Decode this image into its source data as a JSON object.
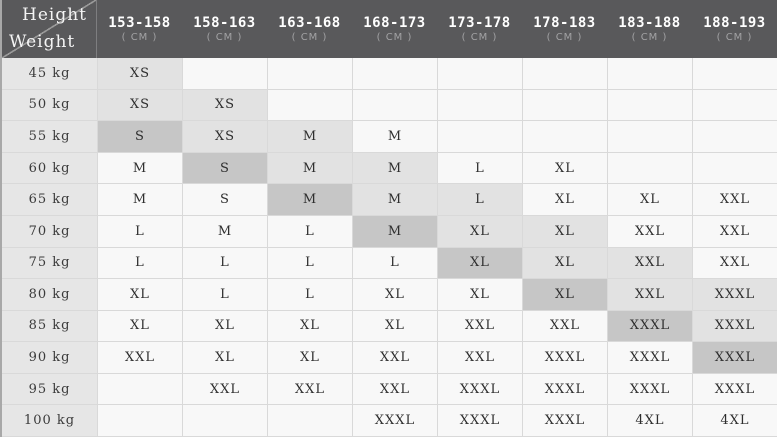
{
  "colors": {
    "header_bg": "#59595b",
    "header_text": "#ffffff",
    "unit_text": "#a2a2a4",
    "row_header_bg": "#e6e6e6",
    "cell_plain": "#f8f8f8",
    "cell_band": "#e2e2e2",
    "cell_highlight": "#c6c6c6",
    "grid_line": "#d9d9d9",
    "cell_text": "#2e2e2e",
    "diagonal_line": "#9a9a9a",
    "table_edge": "#a8a8a8"
  },
  "table": {
    "corner": {
      "height_label": "Height",
      "weight_label": "Weight"
    },
    "unit_label": "( CM )",
    "columns": [
      "153-158",
      "158-163",
      "163-168",
      "168-173",
      "173-178",
      "178-183",
      "183-188",
      "188-193"
    ],
    "rows": [
      {
        "weight": "45 kg",
        "cells": [
          {
            "v": "XS",
            "s": "g"
          },
          {
            "v": "",
            "s": ""
          },
          {
            "v": "",
            "s": ""
          },
          {
            "v": "",
            "s": ""
          },
          {
            "v": "",
            "s": ""
          },
          {
            "v": "",
            "s": ""
          },
          {
            "v": "",
            "s": ""
          },
          {
            "v": "",
            "s": ""
          }
        ]
      },
      {
        "weight": "50 kg",
        "cells": [
          {
            "v": "XS",
            "s": "g"
          },
          {
            "v": "XS",
            "s": "g"
          },
          {
            "v": "",
            "s": ""
          },
          {
            "v": "",
            "s": ""
          },
          {
            "v": "",
            "s": ""
          },
          {
            "v": "",
            "s": ""
          },
          {
            "v": "",
            "s": ""
          },
          {
            "v": "",
            "s": ""
          }
        ]
      },
      {
        "weight": "55 kg",
        "cells": [
          {
            "v": "S",
            "s": "d"
          },
          {
            "v": "XS",
            "s": "g"
          },
          {
            "v": "M",
            "s": "g"
          },
          {
            "v": "M",
            "s": ""
          },
          {
            "v": "",
            "s": ""
          },
          {
            "v": "",
            "s": ""
          },
          {
            "v": "",
            "s": ""
          },
          {
            "v": "",
            "s": ""
          }
        ]
      },
      {
        "weight": "60 kg",
        "cells": [
          {
            "v": "M",
            "s": ""
          },
          {
            "v": "S",
            "s": "d"
          },
          {
            "v": "M",
            "s": "g"
          },
          {
            "v": "M",
            "s": "g"
          },
          {
            "v": "L",
            "s": ""
          },
          {
            "v": "XL",
            "s": ""
          },
          {
            "v": "",
            "s": ""
          },
          {
            "v": "",
            "s": ""
          }
        ]
      },
      {
        "weight": "65 kg",
        "cells": [
          {
            "v": "M",
            "s": ""
          },
          {
            "v": "S",
            "s": ""
          },
          {
            "v": "M",
            "s": "d"
          },
          {
            "v": "M",
            "s": "g"
          },
          {
            "v": "L",
            "s": "g"
          },
          {
            "v": "XL",
            "s": ""
          },
          {
            "v": "XL",
            "s": ""
          },
          {
            "v": "XXL",
            "s": ""
          }
        ]
      },
      {
        "weight": "70 kg",
        "cells": [
          {
            "v": "L",
            "s": ""
          },
          {
            "v": "M",
            "s": ""
          },
          {
            "v": "L",
            "s": ""
          },
          {
            "v": "M",
            "s": "d"
          },
          {
            "v": "XL",
            "s": "g"
          },
          {
            "v": "XL",
            "s": "g"
          },
          {
            "v": "XXL",
            "s": ""
          },
          {
            "v": "XXL",
            "s": ""
          }
        ]
      },
      {
        "weight": "75 kg",
        "cells": [
          {
            "v": "L",
            "s": ""
          },
          {
            "v": "L",
            "s": ""
          },
          {
            "v": "L",
            "s": ""
          },
          {
            "v": "L",
            "s": ""
          },
          {
            "v": "XL",
            "s": "d"
          },
          {
            "v": "XL",
            "s": "g"
          },
          {
            "v": "XXL",
            "s": "g"
          },
          {
            "v": "XXL",
            "s": ""
          }
        ]
      },
      {
        "weight": "80 kg",
        "cells": [
          {
            "v": "XL",
            "s": ""
          },
          {
            "v": "L",
            "s": ""
          },
          {
            "v": "L",
            "s": ""
          },
          {
            "v": "XL",
            "s": ""
          },
          {
            "v": "XL",
            "s": ""
          },
          {
            "v": "XL",
            "s": "d"
          },
          {
            "v": "XXL",
            "s": "g"
          },
          {
            "v": "XXXL",
            "s": "g"
          }
        ]
      },
      {
        "weight": "85 kg",
        "cells": [
          {
            "v": "XL",
            "s": ""
          },
          {
            "v": "XL",
            "s": ""
          },
          {
            "v": "XL",
            "s": ""
          },
          {
            "v": "XL",
            "s": ""
          },
          {
            "v": "XXL",
            "s": ""
          },
          {
            "v": "XXL",
            "s": ""
          },
          {
            "v": "XXXL",
            "s": "d"
          },
          {
            "v": "XXXL",
            "s": "g"
          }
        ]
      },
      {
        "weight": "90 kg",
        "cells": [
          {
            "v": "XXL",
            "s": ""
          },
          {
            "v": "XL",
            "s": ""
          },
          {
            "v": "XL",
            "s": ""
          },
          {
            "v": "XXL",
            "s": ""
          },
          {
            "v": "XXL",
            "s": ""
          },
          {
            "v": "XXXL",
            "s": ""
          },
          {
            "v": "XXXL",
            "s": ""
          },
          {
            "v": "XXXL",
            "s": "d"
          }
        ]
      },
      {
        "weight": "95 kg",
        "cells": [
          {
            "v": "",
            "s": ""
          },
          {
            "v": "XXL",
            "s": ""
          },
          {
            "v": "XXL",
            "s": ""
          },
          {
            "v": "XXL",
            "s": ""
          },
          {
            "v": "XXXL",
            "s": ""
          },
          {
            "v": "XXXL",
            "s": ""
          },
          {
            "v": "XXXL",
            "s": ""
          },
          {
            "v": "XXXL",
            "s": ""
          }
        ]
      },
      {
        "weight": "100 kg",
        "cells": [
          {
            "v": "",
            "s": ""
          },
          {
            "v": "",
            "s": ""
          },
          {
            "v": "",
            "s": ""
          },
          {
            "v": "XXXL",
            "s": ""
          },
          {
            "v": "XXXL",
            "s": ""
          },
          {
            "v": "XXXL",
            "s": ""
          },
          {
            "v": "4XL",
            "s": ""
          },
          {
            "v": "4XL",
            "s": ""
          }
        ]
      }
    ]
  },
  "chart_data": {
    "type": "table",
    "x_header": "Height",
    "x_unit": "CM",
    "y_header": "Weight",
    "y_unit": "kg",
    "columns": [
      "153-158",
      "158-163",
      "163-168",
      "168-173",
      "173-178",
      "178-183",
      "183-188",
      "188-193"
    ],
    "row_labels": [
      "45 kg",
      "50 kg",
      "55 kg",
      "60 kg",
      "65 kg",
      "70 kg",
      "75 kg",
      "80 kg",
      "85 kg",
      "90 kg",
      "95 kg",
      "100 kg"
    ],
    "matrix": [
      [
        "XS",
        "",
        "",
        "",
        "",
        "",
        "",
        ""
      ],
      [
        "XS",
        "XS",
        "",
        "",
        "",
        "",
        "",
        ""
      ],
      [
        "S",
        "XS",
        "M",
        "M",
        "",
        "",
        "",
        ""
      ],
      [
        "M",
        "S",
        "M",
        "M",
        "L",
        "XL",
        "",
        ""
      ],
      [
        "M",
        "S",
        "M",
        "M",
        "L",
        "XL",
        "XL",
        "XXL"
      ],
      [
        "L",
        "M",
        "L",
        "M",
        "XL",
        "XL",
        "XXL",
        "XXL"
      ],
      [
        "L",
        "L",
        "L",
        "L",
        "XL",
        "XL",
        "XXL",
        "XXL"
      ],
      [
        "XL",
        "L",
        "L",
        "XL",
        "XL",
        "XL",
        "XXL",
        "XXXL"
      ],
      [
        "XL",
        "XL",
        "XL",
        "XL",
        "XXL",
        "XXL",
        "XXXL",
        "XXXL"
      ],
      [
        "XXL",
        "XL",
        "XL",
        "XXL",
        "XXL",
        "XXXL",
        "XXXL",
        "XXXL"
      ],
      [
        "",
        "XXL",
        "XXL",
        "XXL",
        "XXXL",
        "XXXL",
        "XXXL",
        "XXXL"
      ],
      [
        "",
        "",
        "",
        "XXXL",
        "XXXL",
        "XXXL",
        "4XL",
        "4XL"
      ]
    ],
    "highlighted_cells": [
      {
        "row": "55 kg",
        "column": "153-158",
        "value": "S"
      },
      {
        "row": "60 kg",
        "column": "158-163",
        "value": "S"
      },
      {
        "row": "65 kg",
        "column": "163-168",
        "value": "M"
      },
      {
        "row": "70 kg",
        "column": "168-173",
        "value": "M"
      },
      {
        "row": "75 kg",
        "column": "173-178",
        "value": "XL"
      },
      {
        "row": "80 kg",
        "column": "178-183",
        "value": "XL"
      },
      {
        "row": "85 kg",
        "column": "183-188",
        "value": "XXXL"
      },
      {
        "row": "90 kg",
        "column": "188-193",
        "value": "XXXL"
      }
    ],
    "legend_position": "none",
    "grid": true
  }
}
